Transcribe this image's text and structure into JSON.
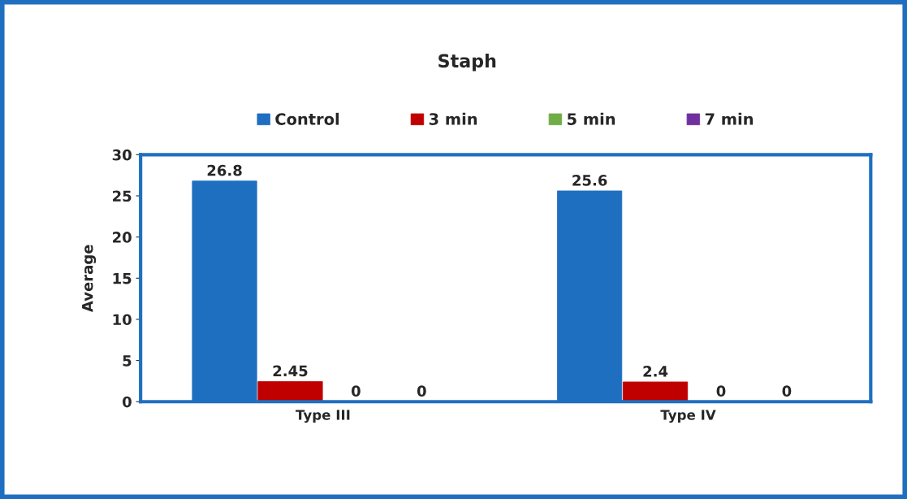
{
  "chart_data": {
    "type": "bar",
    "title": "Staph",
    "ylabel": "Average",
    "categories": [
      "Type III",
      "Type IV"
    ],
    "series": [
      {
        "name": "Control",
        "color": "#1f6fc0",
        "values": [
          26.8,
          25.6
        ]
      },
      {
        "name": "3 min",
        "color": "#c00000",
        "values": [
          2.45,
          2.4
        ]
      },
      {
        "name": "5 min",
        "color": "#70ad47",
        "values": [
          0,
          0
        ]
      },
      {
        "name": "7 min",
        "color": "#7030a0",
        "values": [
          0,
          0
        ]
      }
    ],
    "ylim": [
      0,
      30
    ],
    "yticks": [
      0,
      5,
      10,
      15,
      20,
      25,
      30
    ],
    "data_labels": true,
    "legend": "top",
    "grid": false
  }
}
